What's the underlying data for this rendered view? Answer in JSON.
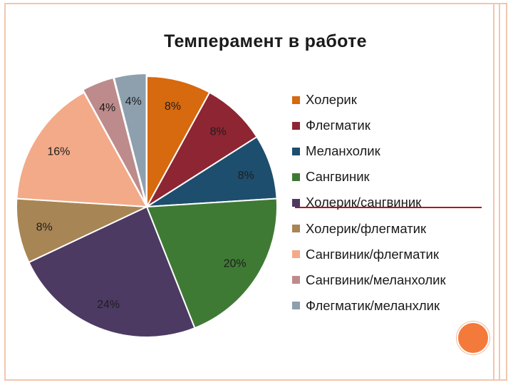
{
  "chart_data": {
    "type": "pie",
    "title": "Темперамент в работе",
    "categories": [
      "Холерик",
      "Флегматик",
      "Меланхолик",
      "Сангвиник",
      "Холерик/сангвиник",
      "Холерик/флегматик",
      "Сангвиник/флегматик",
      "Сангвиник/меланхолик",
      "Флегматик/меланхлик"
    ],
    "values": [
      8,
      8,
      8,
      20,
      24,
      8,
      16,
      4,
      4
    ],
    "value_labels": [
      "8%",
      "8%",
      "8%",
      "20%",
      "24%",
      "8%",
      "16%",
      "4%",
      "4%"
    ],
    "colors": [
      "#d7690e",
      "#8e2533",
      "#1e4e6e",
      "#3f7a34",
      "#4c3a63",
      "#a88554",
      "#f3aa88",
      "#bd8b8b",
      "#8e9fae"
    ],
    "legend_position": "right"
  }
}
